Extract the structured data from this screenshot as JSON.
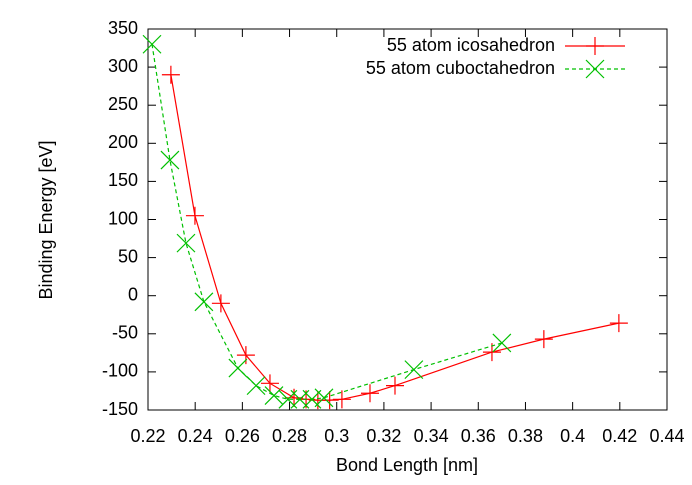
{
  "chart_data": {
    "type": "line",
    "xlabel": "Bond Length [nm]",
    "ylabel": "Binding Energy [eV]",
    "xlim": [
      0.22,
      0.44
    ],
    "ylim": [
      -150,
      350
    ],
    "xticks": [
      0.22,
      0.24,
      0.26,
      0.28,
      0.3,
      0.32,
      0.34,
      0.36,
      0.38,
      0.4,
      0.42,
      0.44
    ],
    "yticks": [
      -150,
      -100,
      -50,
      0,
      50,
      100,
      150,
      200,
      250,
      300,
      350
    ],
    "legend": "top-right",
    "series": [
      {
        "name": "55 atom icosahedron",
        "color": "#ff0000",
        "marker": "plus",
        "x": [
          0.2297,
          0.2399,
          0.2509,
          0.2615,
          0.2717,
          0.2819,
          0.287,
          0.292,
          0.297,
          0.3022,
          0.3141,
          0.3247,
          0.3658,
          0.3878,
          0.4196
        ],
        "values": [
          290,
          105,
          -10,
          -78,
          -115,
          -134,
          -136,
          -137,
          -137,
          -136,
          -128,
          -118,
          -74,
          -57,
          -36
        ]
      },
      {
        "name": "55 atom cuboctahedron",
        "color": "#00c000",
        "marker": "cross",
        "dashed": true,
        "x": [
          0.2217,
          0.2293,
          0.2361,
          0.2437,
          0.2581,
          0.2658,
          0.2734,
          0.2793,
          0.2844,
          0.2895,
          0.2946,
          0.3327,
          0.37
        ],
        "values": [
          330,
          178,
          69,
          -8,
          -95,
          -118,
          -131,
          -136,
          -136,
          -136,
          -134,
          -97,
          -62
        ]
      }
    ]
  }
}
